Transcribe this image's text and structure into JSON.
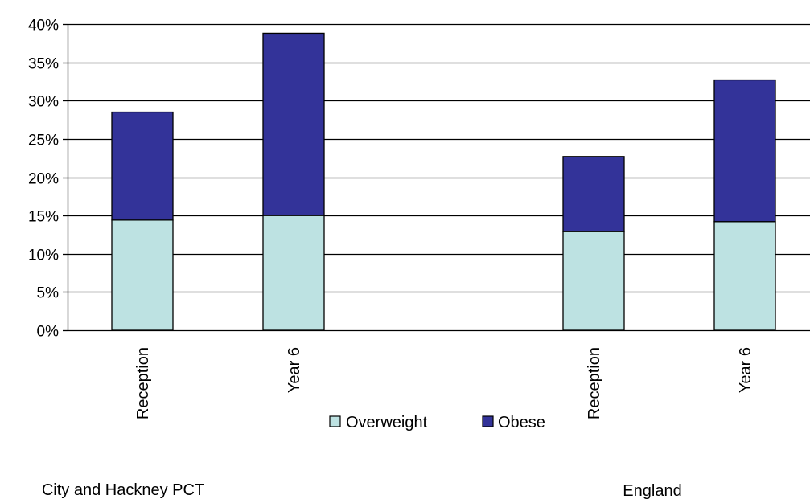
{
  "chart_data": {
    "type": "bar",
    "stacked": true,
    "groups": [
      {
        "name": "City and Hackney PCT",
        "categories": [
          "Reception",
          "Year 6"
        ]
      },
      {
        "name": "England",
        "categories": [
          "Reception",
          "Year 6"
        ]
      }
    ],
    "categories": [
      "Reception",
      "Year 6",
      "Reception",
      "Year 6"
    ],
    "series": [
      {
        "name": "Overweight",
        "color": "#bde2e2",
        "values": [
          14.4,
          15.0,
          12.9,
          14.2
        ]
      },
      {
        "name": "Obese",
        "color": "#333399",
        "values": [
          14.1,
          23.8,
          9.8,
          18.5
        ]
      }
    ],
    "y_ticks": [
      "0%",
      "5%",
      "10%",
      "15%",
      "20%",
      "25%",
      "30%",
      "35%",
      "40%"
    ],
    "ylim": [
      0,
      40
    ],
    "ylabel": "",
    "xlabel": "",
    "title": "",
    "grid": true,
    "legend": {
      "position": "bottom-center",
      "entries": [
        "Overweight",
        "Obese"
      ]
    }
  }
}
